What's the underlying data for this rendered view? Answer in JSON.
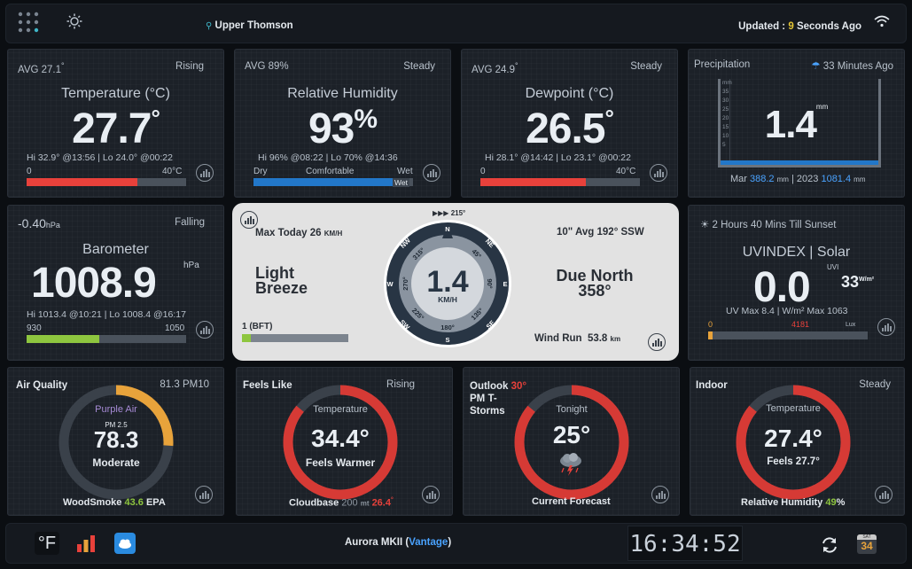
{
  "header": {
    "location": "Upper Thomson",
    "updated_prefix": "Updated : ",
    "updated_value": "9",
    "updated_suffix": " Seconds Ago"
  },
  "temperature": {
    "avg": "AVG 27.1",
    "avg_deg": "°",
    "trend": "Rising",
    "title": "Temperature (°C)",
    "value": "27.7",
    "deg": "°",
    "hilo": "Hi 32.9° @13:56 | Lo 24.0° @00:22",
    "min": "0",
    "max": "40°C",
    "level": 0.6925
  },
  "humidity": {
    "avg": "AVG 89%",
    "trend": "Steady",
    "title": "Relative Humidity",
    "value": "93",
    "pct": "%",
    "hilo": "Hi 96% @08:22 | Lo 70% @14:36",
    "dry": "Dry",
    "comfortable": "Comfortable",
    "wet": "Wet",
    "wet_badge": "Wet",
    "level": 0.93
  },
  "dewpoint": {
    "avg": "AVG 24.9",
    "avg_deg": "°",
    "trend": "Steady",
    "title": "Dewpoint (°C)",
    "value": "26.5",
    "deg": "°",
    "hilo": "Hi 28.1° @14:42 | Lo 23.1° @00:22",
    "min": "0",
    "max": "40°C",
    "level": 0.6625
  },
  "precipitation": {
    "title": "Precipitation",
    "ago": "33 Minutes Ago",
    "value": "1.4",
    "unit": "mm",
    "scale_unit": "mm",
    "scale": [
      "35",
      "30",
      "25",
      "20",
      "15",
      "10",
      "5"
    ],
    "month_label": "Mar",
    "month_value": "388.2",
    "month_unit": "mm",
    "year_label": "| 2023",
    "year_value": "1081.4",
    "year_unit": "mm"
  },
  "barometer": {
    "change": "-0.40",
    "change_unit": "hPa",
    "trend": "Falling",
    "title": "Barometer",
    "value": "1008.9",
    "unit": "hPa",
    "hilo": "Hi 1013.4 @10:21 | Lo 1008.4 @16:17",
    "min": "930",
    "max": "1050",
    "level": 0.6575
  },
  "wind": {
    "max_today": "Max Today 26",
    "max_unit": "KM/H",
    "avg10": "10\" Avg 192° SSW",
    "speed": "1.4",
    "speed_unit": "KM/H",
    "beaufort_text": "Light Breeze",
    "beaufort_line1": "Light",
    "beaufort_line2": "Breeze",
    "direction_label": "Due North",
    "direction_deg": "358°",
    "bft": "1 (BFT)",
    "bft_level": 0.083,
    "wind_run_label": "Wind Run",
    "wind_run_value": "53.8",
    "wind_run_unit": "km",
    "gust_dir": "215°",
    "compass": [
      "N",
      "NE",
      "E",
      "SE",
      "S",
      "SW",
      "W",
      "NW"
    ],
    "degrees": [
      "45°",
      "90°",
      "135°",
      "180°",
      "225°",
      "270°",
      "315°"
    ]
  },
  "uv": {
    "sunset": "2 Hours 40 Mins Till Sunset",
    "title": "UVINDEX | Solar",
    "value": "0.0",
    "uvi_label": "UVI",
    "solar": "33",
    "solar_unit": "W/m²",
    "maxes": "UV Max 8.4 | W/m² Max 1063",
    "min": "0",
    "lux": "4181",
    "lux_label": "Lux"
  },
  "air": {
    "title": "Air Quality",
    "pm10": "81.3 PM10",
    "label": "Purple Air",
    "pm25_label": "PM 2.5",
    "value": "78.3",
    "status": "Moderate",
    "footer_prefix": "WoodSmoke",
    "footer_value": "43.6",
    "footer_suffix": "EPA",
    "level": 0.26
  },
  "feels": {
    "title": "Feels Like",
    "trend": "Rising",
    "label": "Temperature",
    "value": "34.4°",
    "status": "Feels Warmer",
    "cloudbase_label": "Cloudbase",
    "cloudbase_value": "200",
    "cloudbase_unit": "mt",
    "cloudbase_temp": "26.4",
    "cloudbase_deg": "°",
    "level": 0.86
  },
  "outlook": {
    "title": "Outlook",
    "temp": "30°",
    "line2": "PM T-",
    "line3": "Storms",
    "label": "Tonight",
    "value": "25°",
    "footer": "Current Forecast",
    "level": 0.86
  },
  "indoor": {
    "title": "Indoor",
    "trend": "Steady",
    "label": "Temperature",
    "value": "27.4°",
    "feels": "Feels 27.7°",
    "footer_prefix": "Relative Humidity",
    "footer_value": "49",
    "footer_suffix": "%",
    "level": 0.86
  },
  "footer": {
    "unit_toggle": "°F",
    "station_prefix": "Aurora MKII (",
    "station_link": "Vantage",
    "station_suffix": ")",
    "clock": "16:34:52",
    "calendar_day": "34",
    "calendar_month": "SAT"
  },
  "colors": {
    "red": "#e8413b",
    "blue": "#2277c9",
    "green": "#8ec63f",
    "orange": "#e8a33b",
    "track": "#4a525c"
  }
}
